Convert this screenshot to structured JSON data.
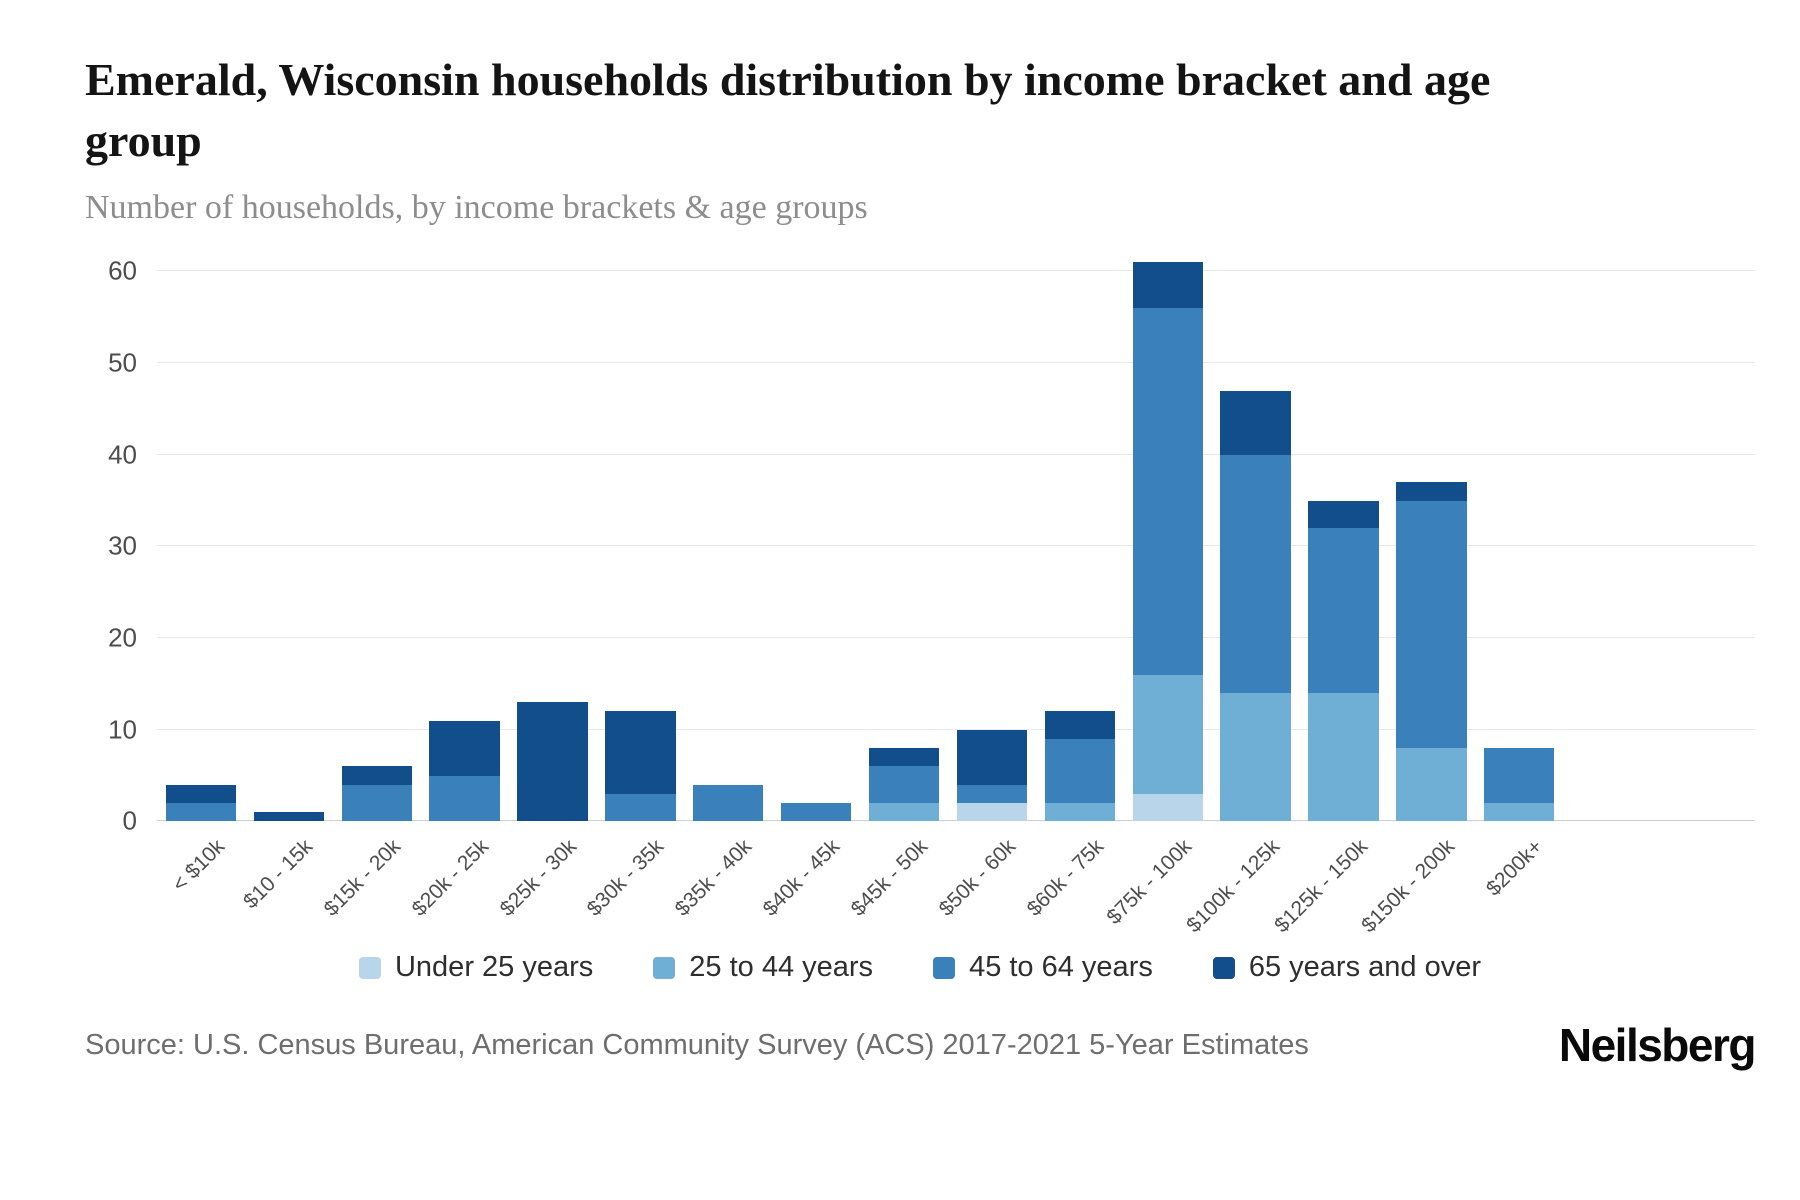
{
  "chart_data": {
    "type": "bar",
    "stacked": true,
    "title": "Emerald, Wisconsin households distribution by income bracket and age group",
    "subtitle": "Number of households, by income brackets & age groups",
    "categories": [
      "< $10k",
      "$10 - 15k",
      "$15k - 20k",
      "$20k - 25k",
      "$25k - 30k",
      "$30k - 35k",
      "$35k - 40k",
      "$40k - 45k",
      "$45k - 50k",
      "$50k - 60k",
      "$60k - 75k",
      "$75k - 100k",
      "$100k - 125k",
      "$125k - 150k",
      "$150k - 200k",
      "$200k+"
    ],
    "series": [
      {
        "name": "Under 25 years",
        "color": "#b8d5e9",
        "values": [
          0,
          0,
          0,
          0,
          0,
          0,
          0,
          0,
          0,
          2,
          0,
          3,
          0,
          0,
          0,
          0
        ]
      },
      {
        "name": "25 to 44 years",
        "color": "#6fafd6",
        "values": [
          0,
          0,
          0,
          0,
          0,
          0,
          0,
          0,
          2,
          0,
          2,
          13,
          14,
          14,
          8,
          2
        ]
      },
      {
        "name": "45 to 64 years",
        "color": "#3a80ba",
        "values": [
          2,
          0,
          4,
          5,
          0,
          3,
          4,
          2,
          4,
          2,
          7,
          40,
          26,
          18,
          27,
          6
        ]
      },
      {
        "name": "65 years and over",
        "color": "#124d8c",
        "values": [
          2,
          1,
          2,
          6,
          13,
          9,
          0,
          0,
          2,
          6,
          3,
          5,
          7,
          3,
          2,
          0
        ]
      }
    ],
    "totals": [
      4,
      1,
      6,
      11,
      13,
      12,
      4,
      2,
      8,
      10,
      12,
      61,
      47,
      35,
      37,
      8
    ],
    "ylim": [
      0,
      60
    ],
    "yticks": [
      0,
      10,
      20,
      30,
      40,
      50,
      60
    ],
    "grid": "horizontal",
    "legend_position": "bottom",
    "xlabel": "",
    "ylabel": ""
  },
  "footer": {
    "source": "Source: U.S. Census Bureau, American Community Survey (ACS) 2017-2021 5-Year Estimates",
    "brand": "Neilsberg"
  }
}
